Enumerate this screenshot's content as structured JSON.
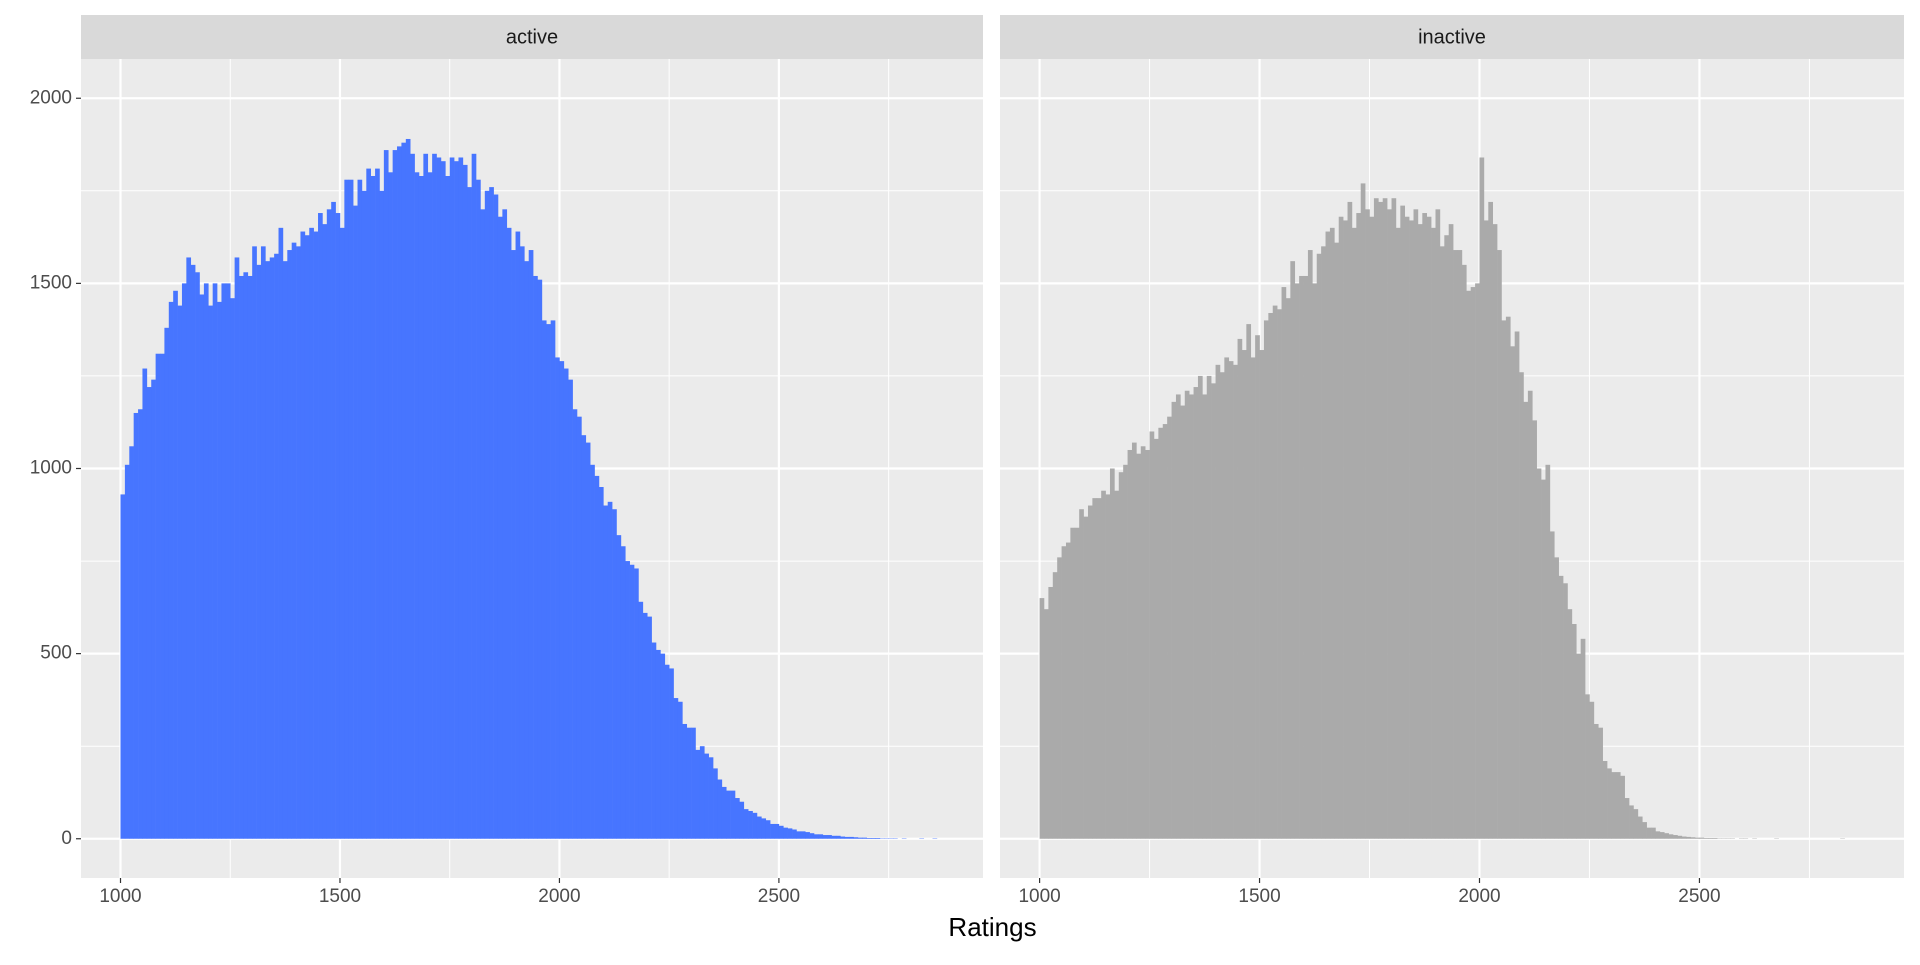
{
  "chart_data": {
    "type": "histogram",
    "facet": true,
    "xlabel": "Ratings",
    "grid": true,
    "xlim": [
      910,
      2965
    ],
    "xticks": [
      1000,
      1500,
      2000,
      2500
    ],
    "ylim": [
      -106,
      2106
    ],
    "yticks": [
      0,
      500,
      1000,
      1500,
      2000
    ],
    "bins": [
      1000,
      1010,
      1020,
      1030,
      1040,
      1050,
      1060,
      1070,
      1080,
      1090,
      1100,
      1110,
      1120,
      1130,
      1140,
      1150,
      1160,
      1170,
      1180,
      1190,
      1200,
      1210,
      1220,
      1230,
      1240,
      1250,
      1260,
      1270,
      1280,
      1290,
      1300,
      1310,
      1320,
      1330,
      1340,
      1350,
      1360,
      1370,
      1380,
      1390,
      1400,
      1410,
      1420,
      1430,
      1440,
      1450,
      1460,
      1470,
      1480,
      1490,
      1500,
      1510,
      1520,
      1530,
      1540,
      1550,
      1560,
      1570,
      1580,
      1590,
      1600,
      1610,
      1620,
      1630,
      1640,
      1650,
      1660,
      1670,
      1680,
      1690,
      1700,
      1710,
      1720,
      1730,
      1740,
      1750,
      1760,
      1770,
      1780,
      1790,
      1800,
      1810,
      1820,
      1830,
      1840,
      1850,
      1860,
      1870,
      1880,
      1890,
      1900,
      1910,
      1920,
      1930,
      1940,
      1950,
      1960,
      1970,
      1980,
      1990,
      2000,
      2010,
      2020,
      2030,
      2040,
      2050,
      2060,
      2070,
      2080,
      2090,
      2100,
      2110,
      2120,
      2130,
      2140,
      2150,
      2160,
      2170,
      2180,
      2190,
      2200,
      2210,
      2220,
      2230,
      2240,
      2250,
      2260,
      2270,
      2280,
      2290,
      2300,
      2310,
      2320,
      2330,
      2340,
      2350,
      2360,
      2370,
      2380,
      2390,
      2400,
      2410,
      2420,
      2430,
      2440,
      2450,
      2460,
      2470,
      2480,
      2490,
      2500,
      2510,
      2520,
      2530,
      2540,
      2550,
      2560,
      2570,
      2580,
      2590,
      2600,
      2610,
      2620,
      2630,
      2640,
      2650,
      2660,
      2670,
      2680,
      2690,
      2700,
      2710,
      2720,
      2730,
      2740,
      2750,
      2760,
      2770,
      2780,
      2790,
      2800,
      2810,
      2820,
      2830,
      2840,
      2850,
      2860
    ],
    "series": [
      {
        "name": "active",
        "color": "#4775ff",
        "values": [
          930,
          1010,
          1060,
          1150,
          1160,
          1270,
          1220,
          1240,
          1310,
          1310,
          1380,
          1450,
          1480,
          1440,
          1500,
          1570,
          1550,
          1530,
          1470,
          1500,
          1440,
          1500,
          1450,
          1500,
          1500,
          1460,
          1570,
          1520,
          1530,
          1520,
          1600,
          1550,
          1600,
          1560,
          1570,
          1580,
          1650,
          1560,
          1590,
          1610,
          1600,
          1640,
          1630,
          1650,
          1640,
          1690,
          1660,
          1700,
          1720,
          1690,
          1650,
          1780,
          1780,
          1710,
          1780,
          1750,
          1810,
          1790,
          1810,
          1750,
          1860,
          1800,
          1860,
          1870,
          1880,
          1890,
          1850,
          1800,
          1790,
          1850,
          1800,
          1850,
          1840,
          1830,
          1790,
          1840,
          1830,
          1840,
          1820,
          1760,
          1850,
          1780,
          1700,
          1750,
          1760,
          1740,
          1680,
          1700,
          1650,
          1590,
          1640,
          1600,
          1560,
          1590,
          1520,
          1510,
          1400,
          1390,
          1400,
          1300,
          1290,
          1270,
          1240,
          1160,
          1140,
          1090,
          1070,
          1010,
          980,
          950,
          900,
          910,
          890,
          820,
          790,
          750,
          740,
          730,
          640,
          610,
          600,
          530,
          510,
          500,
          470,
          460,
          380,
          370,
          310,
          300,
          300,
          240,
          250,
          230,
          220,
          190,
          160,
          140,
          130,
          130,
          110,
          100,
          80,
          75,
          70,
          60,
          55,
          50,
          40,
          40,
          35,
          30,
          28,
          25,
          20,
          20,
          18,
          15,
          12,
          12,
          10,
          10,
          8,
          8,
          6,
          5,
          5,
          4,
          3,
          3,
          2,
          2,
          2,
          1,
          1,
          1,
          1,
          0,
          1,
          0,
          0,
          0,
          1,
          0,
          0,
          1
        ]
      },
      {
        "name": "inactive",
        "color": "#aaaaaa",
        "values": [
          650,
          620,
          680,
          720,
          760,
          790,
          800,
          840,
          840,
          890,
          870,
          900,
          920,
          920,
          940,
          930,
          1000,
          940,
          990,
          1010,
          1050,
          1070,
          1040,
          1060,
          1050,
          1100,
          1080,
          1110,
          1120,
          1140,
          1180,
          1200,
          1170,
          1210,
          1200,
          1220,
          1250,
          1200,
          1250,
          1230,
          1280,
          1260,
          1300,
          1290,
          1280,
          1350,
          1320,
          1390,
          1300,
          1360,
          1320,
          1400,
          1420,
          1440,
          1430,
          1490,
          1460,
          1560,
          1500,
          1520,
          1520,
          1590,
          1500,
          1580,
          1600,
          1640,
          1650,
          1610,
          1680,
          1670,
          1720,
          1650,
          1690,
          1770,
          1700,
          1680,
          1730,
          1720,
          1730,
          1700,
          1730,
          1650,
          1710,
          1680,
          1670,
          1700,
          1660,
          1690,
          1680,
          1650,
          1700,
          1600,
          1630,
          1660,
          1590,
          1590,
          1550,
          1480,
          1490,
          1500,
          1840,
          1670,
          1720,
          1660,
          1590,
          1400,
          1410,
          1330,
          1370,
          1260,
          1180,
          1210,
          1130,
          1000,
          970,
          1010,
          830,
          760,
          710,
          690,
          620,
          580,
          500,
          540,
          390,
          370,
          310,
          300,
          210,
          190,
          180,
          180,
          170,
          110,
          90,
          80,
          60,
          45,
          30,
          30,
          20,
          18,
          15,
          12,
          10,
          8,
          6,
          5,
          4,
          3,
          3,
          2,
          2,
          2,
          1,
          1,
          1,
          1,
          0,
          1,
          1,
          0,
          1,
          0,
          0,
          0,
          0,
          1,
          0,
          0,
          0,
          0,
          0,
          0,
          0,
          0,
          0,
          0,
          0,
          0,
          0,
          0,
          1,
          0,
          0,
          0
        ]
      }
    ]
  }
}
